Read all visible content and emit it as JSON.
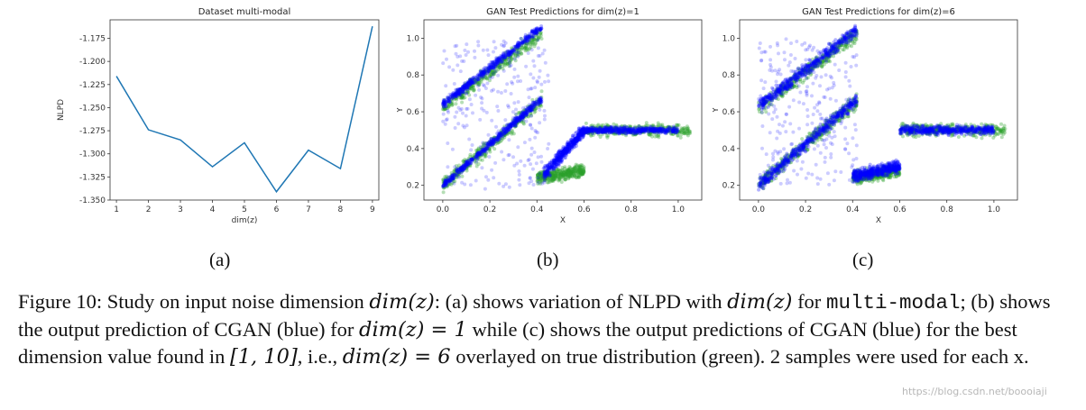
{
  "chart_data": [
    {
      "type": "line",
      "title": "Dataset multi-modal",
      "xlabel": "dim(z)",
      "ylabel": "NLPD",
      "x": [
        1,
        2,
        3,
        4,
        5,
        6,
        7,
        8,
        9
      ],
      "values": [
        -1.216,
        -1.274,
        -1.285,
        -1.314,
        -1.288,
        -1.341,
        -1.296,
        -1.316,
        -1.162
      ],
      "xlim": [
        0.8,
        9.2
      ],
      "ylim": [
        -1.35,
        -1.155
      ],
      "xticks": [
        "1",
        "2",
        "3",
        "4",
        "5",
        "6",
        "7",
        "8",
        "9"
      ],
      "yticks": [
        "-1.175",
        "-1.200",
        "-1.225",
        "-1.250",
        "-1.275",
        "-1.300",
        "-1.325",
        "-1.350"
      ],
      "color": "#1f77b4",
      "grid": false
    },
    {
      "type": "scatter",
      "title": "GAN Test Predictions for dim(z)=1",
      "xlabel": "X",
      "ylabel": "Y",
      "xlim": [
        -0.08,
        1.1
      ],
      "ylim": [
        0.12,
        1.1
      ],
      "xticks": [
        "0.0",
        "0.2",
        "0.4",
        "0.6",
        "0.8",
        "1.0"
      ],
      "yticks": [
        "0.2",
        "0.4",
        "0.6",
        "0.8",
        "1.0"
      ],
      "grid": false,
      "series": [
        {
          "color": "#2ca02c",
          "segments": [
            {
              "x0": 0.0,
              "x1": 0.42,
              "y0": 0.62,
              "y1": 1.03,
              "spread": 0.025
            },
            {
              "x0": 0.0,
              "x1": 0.42,
              "y0": 0.2,
              "y1": 0.66,
              "spread": 0.025
            },
            {
              "x0": 0.4,
              "x1": 0.6,
              "y0": 0.24,
              "y1": 0.28,
              "spread": 0.02
            },
            {
              "x0": 0.6,
              "x1": 1.05,
              "y0": 0.5,
              "y1": 0.5,
              "spread": 0.02
            }
          ]
        },
        {
          "color": "#0000ff",
          "segments": [
            {
              "x0": 0.0,
              "x1": 0.42,
              "y0": 0.64,
              "y1": 1.06,
              "spread": 0.012
            },
            {
              "x0": 0.0,
              "x1": 0.42,
              "y0": 0.2,
              "y1": 0.67,
              "spread": 0.012
            },
            {
              "x0": 0.43,
              "x1": 0.6,
              "y0": 0.26,
              "y1": 0.5,
              "spread": 0.02
            },
            {
              "x0": 0.6,
              "x1": 1.0,
              "y0": 0.5,
              "y1": 0.5,
              "spread": 0.01
            }
          ],
          "scatter_fill": {
            "x0": 0.0,
            "x1": 0.45,
            "y0": 0.18,
            "y1": 1.0
          }
        }
      ]
    },
    {
      "type": "scatter",
      "title": "GAN Test Predictions for dim(z)=6",
      "xlabel": "X",
      "ylabel": "Y",
      "xlim": [
        -0.08,
        1.1
      ],
      "ylim": [
        0.12,
        1.1
      ],
      "xticks": [
        "0.0",
        "0.2",
        "0.4",
        "0.6",
        "0.8",
        "1.0"
      ],
      "yticks": [
        "0.2",
        "0.4",
        "0.6",
        "0.8",
        "1.0"
      ],
      "grid": false,
      "series": [
        {
          "color": "#2ca02c",
          "segments": [
            {
              "x0": 0.0,
              "x1": 0.42,
              "y0": 0.62,
              "y1": 1.03,
              "spread": 0.025
            },
            {
              "x0": 0.0,
              "x1": 0.42,
              "y0": 0.2,
              "y1": 0.66,
              "spread": 0.025
            },
            {
              "x0": 0.4,
              "x1": 0.6,
              "y0": 0.24,
              "y1": 0.28,
              "spread": 0.02
            },
            {
              "x0": 0.6,
              "x1": 1.05,
              "y0": 0.5,
              "y1": 0.5,
              "spread": 0.02
            }
          ]
        },
        {
          "color": "#0000ff",
          "segments": [
            {
              "x0": 0.0,
              "x1": 0.42,
              "y0": 0.63,
              "y1": 1.05,
              "spread": 0.02
            },
            {
              "x0": 0.0,
              "x1": 0.42,
              "y0": 0.2,
              "y1": 0.67,
              "spread": 0.02
            },
            {
              "x0": 0.4,
              "x1": 0.6,
              "y0": 0.25,
              "y1": 0.3,
              "spread": 0.02
            },
            {
              "x0": 0.6,
              "x1": 1.0,
              "y0": 0.5,
              "y1": 0.5,
              "spread": 0.015
            }
          ],
          "scatter_fill": {
            "x0": 0.0,
            "x1": 0.42,
            "y0": 0.2,
            "y1": 1.0
          }
        }
      ]
    }
  ],
  "subfigures": [
    "(a)",
    "(b)",
    "(c)"
  ],
  "caption": {
    "p1": "Figure 10: Study on input noise dimension ",
    "m1": "dim(z)",
    "p2": ": (a) shows variation of NLPD with ",
    "m2": "dim(z)",
    "p3": " for ",
    "mono": "multi-modal",
    "p4": "; (b) shows the output prediction of CGAN (blue) for ",
    "m3": "dim(z) = 1",
    "p5": " while (c) shows the output predictions of CGAN (blue) for the best dimension value found in ",
    "m4": "[1, 10]",
    "p6": ", i.e., ",
    "m5": "dim(z) = 6",
    "p7": " overlayed on true distribution (green). 2 samples were used for each x."
  },
  "watermark": "https://blog.csdn.net/boooiaji"
}
